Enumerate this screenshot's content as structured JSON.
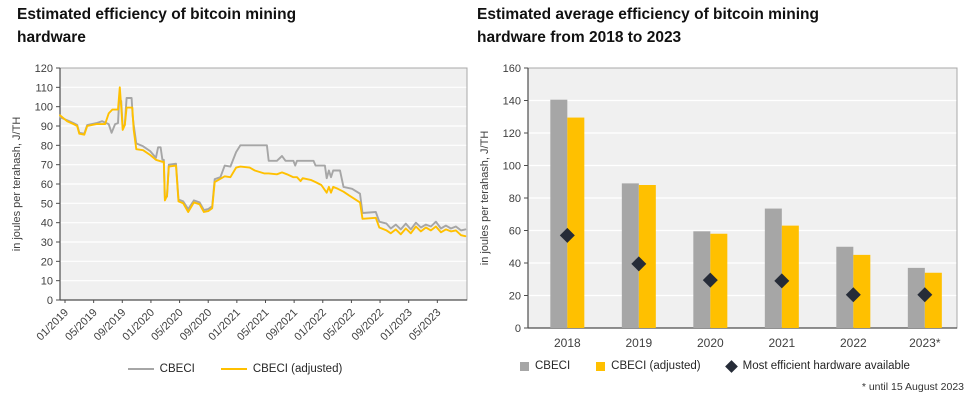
{
  "chart_data": [
    {
      "type": "line",
      "title": "Estimated efficiency of bitcoin mining hardware",
      "ylabel": "in joules per terahash, J/TH",
      "ylim": [
        0,
        120
      ],
      "ytick_step": 10,
      "grid": true,
      "plot_bg": "#f0f0f0",
      "grid_color": "#ffffff",
      "axis_color": "#4d4d4d",
      "border_color": "#a8a8a8",
      "text_color": "#404040",
      "legend_position": "bottom",
      "x_tick_labels": [
        "01/2019",
        "05/2019",
        "09/2019",
        "01/2020",
        "05/2020",
        "09/2020",
        "01/2021",
        "05/2021",
        "09/2021",
        "01/2022",
        "05/2022",
        "09/2022",
        "01/2023",
        "05/2023"
      ],
      "x_tick_months": [
        0,
        4,
        8,
        12,
        16,
        20,
        24,
        28,
        32,
        36,
        40,
        44,
        48,
        52
      ],
      "series": [
        {
          "name": "CBECI",
          "color": "#a6a6a6",
          "points": [
            [
              -0.7,
              94.5
            ],
            [
              0.3,
              93
            ],
            [
              1.2,
              91.5
            ],
            [
              1.7,
              90.5
            ],
            [
              2.0,
              86.5
            ],
            [
              2.7,
              86
            ],
            [
              3.1,
              90.5
            ],
            [
              4.4,
              91.5
            ],
            [
              5.2,
              92.5
            ],
            [
              6.1,
              91
            ],
            [
              6.5,
              86.5
            ],
            [
              7.0,
              91
            ],
            [
              7.4,
              91.5
            ],
            [
              7.55,
              103
            ],
            [
              7.85,
              103
            ],
            [
              8.05,
              89.5
            ],
            [
              8.35,
              90.5
            ],
            [
              8.6,
              104.5
            ],
            [
              9.3,
              104.5
            ],
            [
              9.45,
              95
            ],
            [
              9.6,
              90.5
            ],
            [
              9.95,
              81
            ],
            [
              10.9,
              79.5
            ],
            [
              11.9,
              77
            ],
            [
              12.7,
              73.5
            ],
            [
              13.0,
              79
            ],
            [
              13.35,
              79
            ],
            [
              13.6,
              72.5
            ],
            [
              13.8,
              72.5
            ],
            [
              13.95,
              52.5
            ],
            [
              14.25,
              53.5
            ],
            [
              14.5,
              70
            ],
            [
              15.5,
              70.5
            ],
            [
              15.85,
              52
            ],
            [
              16.5,
              51
            ],
            [
              17.2,
              47
            ],
            [
              18.0,
              51.5
            ],
            [
              18.8,
              50.5
            ],
            [
              19.4,
              46.5
            ],
            [
              20.0,
              47
            ],
            [
              20.55,
              48.5
            ],
            [
              20.9,
              62.5
            ],
            [
              21.7,
              63.5
            ],
            [
              22.3,
              69.5
            ],
            [
              23.1,
              69
            ],
            [
              23.9,
              76.5
            ],
            [
              24.5,
              80
            ],
            [
              28.2,
              80
            ],
            [
              28.45,
              72
            ],
            [
              29.6,
              72
            ],
            [
              30.3,
              74.5
            ],
            [
              30.8,
              72
            ],
            [
              31.9,
              72
            ],
            [
              32.15,
              69.5
            ],
            [
              32.4,
              72
            ],
            [
              34.7,
              72
            ],
            [
              35.0,
              69.5
            ],
            [
              36.3,
              69.5
            ],
            [
              36.55,
              63
            ],
            [
              36.85,
              67
            ],
            [
              37.15,
              63.5
            ],
            [
              37.45,
              67
            ],
            [
              38.4,
              67
            ],
            [
              38.9,
              58.5
            ],
            [
              40.1,
              57.5
            ],
            [
              41.2,
              55
            ],
            [
              41.55,
              45
            ],
            [
              43.4,
              45.5
            ],
            [
              43.9,
              40.5
            ],
            [
              44.9,
              39.5
            ],
            [
              45.5,
              37
            ],
            [
              46.2,
              39
            ],
            [
              46.9,
              36.5
            ],
            [
              47.6,
              39.5
            ],
            [
              48.3,
              36.5
            ],
            [
              49.0,
              40
            ],
            [
              49.7,
              37.5
            ],
            [
              50.4,
              39
            ],
            [
              51.1,
              38
            ],
            [
              51.8,
              40.5
            ],
            [
              52.5,
              37
            ],
            [
              53.2,
              38.5
            ],
            [
              53.9,
              37
            ],
            [
              54.6,
              38
            ],
            [
              55.3,
              36
            ],
            [
              55.9,
              36.5
            ]
          ]
        },
        {
          "name": "CBECI (adjusted)",
          "color": "#ffc000",
          "points": [
            [
              -0.7,
              95.5
            ],
            [
              0.3,
              92.5
            ],
            [
              1.2,
              91
            ],
            [
              1.7,
              90
            ],
            [
              2.0,
              86
            ],
            [
              2.7,
              85.5
            ],
            [
              3.1,
              90
            ],
            [
              4.4,
              91
            ],
            [
              5.6,
              91
            ],
            [
              6.1,
              96.5
            ],
            [
              6.6,
              98.5
            ],
            [
              7.4,
              98.5
            ],
            [
              7.65,
              110
            ],
            [
              7.9,
              97
            ],
            [
              8.05,
              88
            ],
            [
              8.35,
              90.5
            ],
            [
              8.6,
              99.5
            ],
            [
              9.4,
              99.5
            ],
            [
              9.6,
              88
            ],
            [
              9.95,
              78
            ],
            [
              10.9,
              77.5
            ],
            [
              11.9,
              75
            ],
            [
              12.7,
              72.5
            ],
            [
              13.6,
              71.5
            ],
            [
              13.8,
              71.5
            ],
            [
              13.95,
              51.5
            ],
            [
              14.25,
              54
            ],
            [
              14.5,
              69
            ],
            [
              15.5,
              69.5
            ],
            [
              15.85,
              51
            ],
            [
              16.5,
              50
            ],
            [
              17.2,
              45.5
            ],
            [
              18.0,
              50.5
            ],
            [
              18.8,
              49.5
            ],
            [
              19.4,
              45.5
            ],
            [
              20.0,
              46
            ],
            [
              20.55,
              47.5
            ],
            [
              20.9,
              61
            ],
            [
              22.3,
              64
            ],
            [
              23.1,
              63.5
            ],
            [
              23.9,
              68.5
            ],
            [
              24.5,
              69
            ],
            [
              25.8,
              68.5
            ],
            [
              26.5,
              67
            ],
            [
              27.8,
              65.5
            ],
            [
              28.45,
              65.5
            ],
            [
              29.6,
              65
            ],
            [
              30.3,
              66
            ],
            [
              31.0,
              65
            ],
            [
              31.9,
              63.5
            ],
            [
              32.4,
              63.5
            ],
            [
              32.9,
              61.5
            ],
            [
              33.2,
              63
            ],
            [
              34.4,
              62
            ],
            [
              35.0,
              61
            ],
            [
              35.8,
              59.5
            ],
            [
              36.55,
              55.5
            ],
            [
              36.85,
              58.5
            ],
            [
              37.15,
              55.5
            ],
            [
              37.45,
              58.5
            ],
            [
              38.1,
              57.5
            ],
            [
              38.9,
              56
            ],
            [
              39.7,
              54
            ],
            [
              41.2,
              50.5
            ],
            [
              41.55,
              42
            ],
            [
              43.4,
              42.5
            ],
            [
              43.9,
              37.5
            ],
            [
              44.9,
              36
            ],
            [
              45.5,
              34.5
            ],
            [
              46.2,
              36.5
            ],
            [
              46.9,
              34
            ],
            [
              47.6,
              37
            ],
            [
              48.3,
              34.5
            ],
            [
              49.0,
              38
            ],
            [
              49.7,
              35.5
            ],
            [
              50.4,
              37.5
            ],
            [
              51.1,
              36
            ],
            [
              51.8,
              38
            ],
            [
              52.5,
              35
            ],
            [
              53.2,
              36.5
            ],
            [
              53.9,
              35.5
            ],
            [
              54.6,
              36
            ],
            [
              55.3,
              33.5
            ],
            [
              55.9,
              33
            ]
          ]
        }
      ]
    },
    {
      "type": "bar",
      "title": "Estimated average efficiency of bitcoin mining hardware from 2018 to 2023",
      "ylabel": "in joules per terahash, J/TH",
      "ylim": [
        0,
        160
      ],
      "ytick_step": 20,
      "grid": true,
      "plot_bg": "#f0f0f0",
      "grid_color": "#ffffff",
      "axis_color": "#4d4d4d",
      "border_color": "#a8a8a8",
      "text_color": "#404040",
      "legend_position": "bottom",
      "categories": [
        "2018",
        "2019",
        "2020",
        "2021",
        "2022",
        "2023*"
      ],
      "series": [
        {
          "name": "CBECI",
          "marker": "bar",
          "color": "#a6a6a6",
          "values": [
            140.5,
            89,
            59.5,
            73.5,
            50,
            37
          ]
        },
        {
          "name": "CBECI (adjusted)",
          "marker": "bar",
          "color": "#ffc000",
          "values": [
            129.5,
            88,
            58,
            63,
            45,
            34
          ]
        },
        {
          "name": "Most efficient hardware available",
          "marker": "diamond",
          "color": "#262c38",
          "values": [
            57,
            39.5,
            29.5,
            29,
            20.5,
            20.5
          ]
        }
      ],
      "footnote": "* until 15 August 2023"
    }
  ]
}
